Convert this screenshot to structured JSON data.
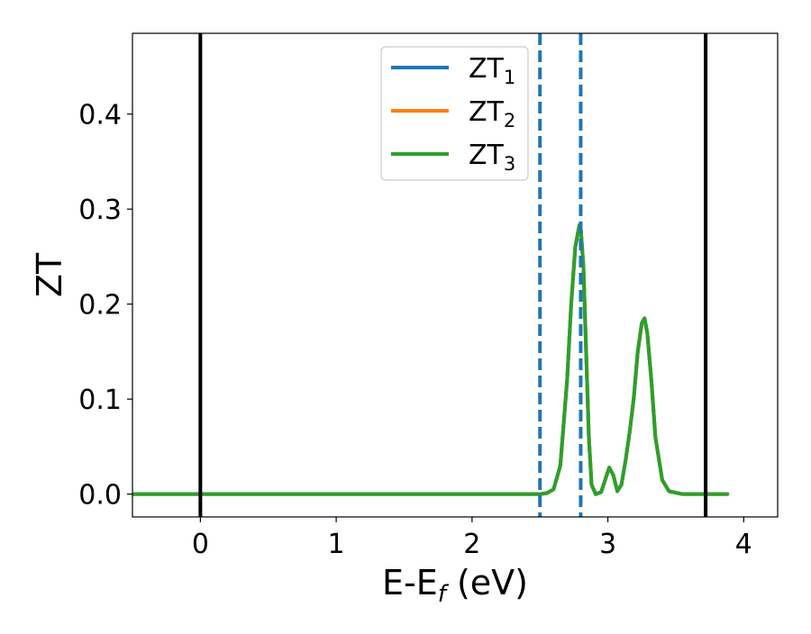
{
  "chart_data": {
    "type": "line",
    "title": "",
    "xlabel": "E-E",
    "xlabel_sub": "f",
    "xlabel_unit": " (eV)",
    "ylabel": "ZT",
    "xlim": [
      -0.5,
      4.25
    ],
    "ylim": [
      -0.024,
      0.485
    ],
    "xticks": [
      0,
      1,
      2,
      3,
      4
    ],
    "xtick_labels": [
      "0",
      "1",
      "2",
      "3",
      "4"
    ],
    "yticks": [
      0.0,
      0.1,
      0.2,
      0.3,
      0.4
    ],
    "ytick_labels": [
      "0.0",
      "0.1",
      "0.2",
      "0.3",
      "0.4"
    ],
    "grid": false,
    "legend_position": "top-center",
    "vlines_solid": [
      {
        "x": 0.0,
        "color": "#000000"
      },
      {
        "x": 3.72,
        "color": "#000000"
      }
    ],
    "vlines_dashed": [
      {
        "x": 2.5,
        "color": "#1f77b4"
      },
      {
        "x": 2.8,
        "color": "#1f77b4"
      }
    ],
    "series": [
      {
        "name": "ZT",
        "name_sub": "1",
        "color": "#1f77b4",
        "x": [
          -0.5,
          0.0,
          1.0,
          2.0,
          2.5,
          2.55,
          2.6,
          2.65,
          2.7,
          2.73,
          2.76,
          2.79,
          2.8,
          2.82,
          2.84,
          2.86,
          2.88,
          2.91,
          2.95,
          2.98,
          3.01,
          3.04,
          3.07,
          3.1,
          3.13,
          3.16,
          3.19,
          3.22,
          3.25,
          3.27,
          3.29,
          3.32,
          3.35,
          3.4,
          3.45,
          3.55,
          3.7,
          3.88
        ],
        "y": [
          0.0,
          0.0,
          0.0,
          0.0,
          0.0,
          0.001,
          0.005,
          0.03,
          0.12,
          0.2,
          0.26,
          0.283,
          0.28,
          0.24,
          0.15,
          0.06,
          0.01,
          0.0,
          0.002,
          0.015,
          0.028,
          0.02,
          0.003,
          0.01,
          0.035,
          0.065,
          0.1,
          0.15,
          0.18,
          0.185,
          0.17,
          0.12,
          0.06,
          0.015,
          0.003,
          0.0,
          0.0,
          0.0
        ]
      },
      {
        "name": "ZT",
        "name_sub": "2",
        "color": "#ff7f0e",
        "x": [
          -0.5,
          0.0,
          1.0,
          2.0,
          2.5,
          2.55,
          2.6,
          2.65,
          2.7,
          2.73,
          2.76,
          2.79,
          2.8,
          2.82,
          2.84,
          2.86,
          2.88,
          2.91,
          2.95,
          2.98,
          3.01,
          3.04,
          3.07,
          3.1,
          3.13,
          3.16,
          3.19,
          3.22,
          3.25,
          3.27,
          3.29,
          3.32,
          3.35,
          3.4,
          3.45,
          3.55,
          3.7,
          3.88
        ],
        "y": [
          0.0,
          0.0,
          0.0,
          0.0,
          0.0,
          0.001,
          0.005,
          0.03,
          0.12,
          0.2,
          0.26,
          0.283,
          0.28,
          0.24,
          0.15,
          0.06,
          0.01,
          0.0,
          0.002,
          0.015,
          0.028,
          0.02,
          0.003,
          0.01,
          0.035,
          0.065,
          0.1,
          0.15,
          0.18,
          0.185,
          0.17,
          0.12,
          0.06,
          0.015,
          0.003,
          0.0,
          0.0,
          0.0
        ]
      },
      {
        "name": "ZT",
        "name_sub": "3",
        "color": "#2ca02c",
        "x": [
          -0.5,
          0.0,
          1.0,
          2.0,
          2.5,
          2.55,
          2.6,
          2.65,
          2.7,
          2.73,
          2.76,
          2.79,
          2.8,
          2.82,
          2.84,
          2.86,
          2.88,
          2.91,
          2.95,
          2.98,
          3.01,
          3.04,
          3.07,
          3.1,
          3.13,
          3.16,
          3.19,
          3.22,
          3.25,
          3.27,
          3.29,
          3.32,
          3.35,
          3.4,
          3.45,
          3.55,
          3.7,
          3.88
        ],
        "y": [
          0.0,
          0.0,
          0.0,
          0.0,
          0.0,
          0.001,
          0.005,
          0.03,
          0.12,
          0.2,
          0.26,
          0.283,
          0.28,
          0.24,
          0.15,
          0.06,
          0.01,
          0.0,
          0.002,
          0.015,
          0.028,
          0.02,
          0.003,
          0.01,
          0.035,
          0.065,
          0.1,
          0.15,
          0.18,
          0.185,
          0.17,
          0.12,
          0.06,
          0.015,
          0.003,
          0.0,
          0.0,
          0.0
        ]
      }
    ]
  }
}
